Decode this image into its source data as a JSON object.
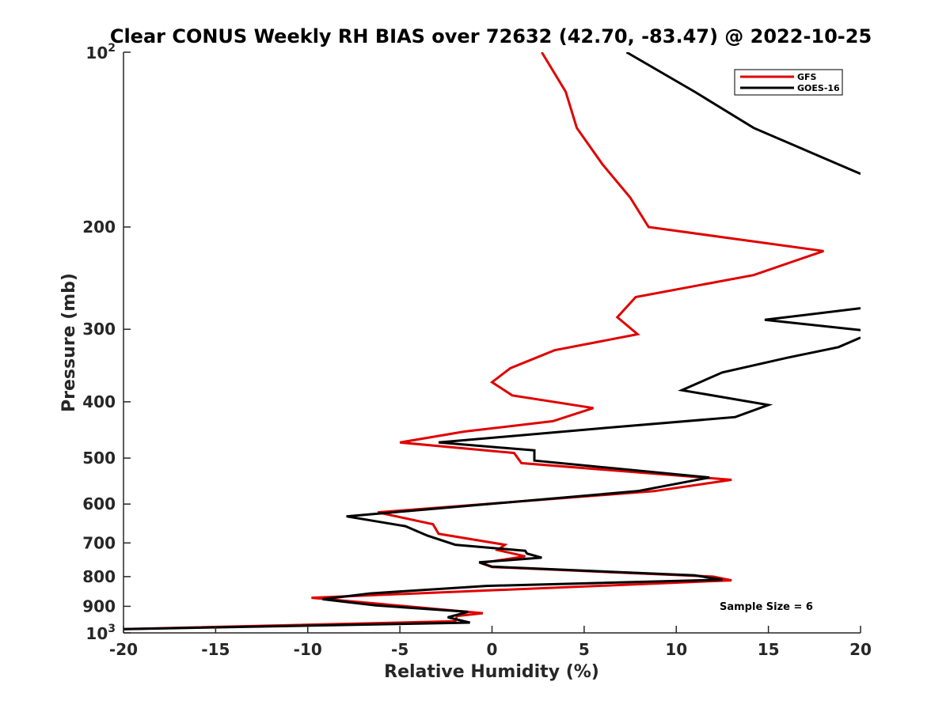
{
  "chart_data": {
    "type": "line",
    "title": "Clear CONUS Weekly RH BIAS over 72632 (42.70, -83.47) @ 2022-10-25",
    "xlabel": "Relative Humidity (%)",
    "ylabel": "Pressure (mb)",
    "xlim": [
      -20,
      20
    ],
    "ylim": [
      100,
      1000
    ],
    "y_scale": "log",
    "y_reversed": true,
    "x_ticks": [
      "-20",
      "-15",
      "-10",
      "-5",
      "0",
      "5",
      "10",
      "15",
      "20"
    ],
    "y_ticks": [
      {
        "value": 100,
        "base": "10",
        "exp": "2"
      },
      {
        "value": 200,
        "label": "200"
      },
      {
        "value": 300,
        "label": "300"
      },
      {
        "value": 400,
        "label": "400"
      },
      {
        "value": 500,
        "label": "500"
      },
      {
        "value": 600,
        "label": "600"
      },
      {
        "value": 700,
        "label": "700"
      },
      {
        "value": 800,
        "label": "800"
      },
      {
        "value": 900,
        "label": "900"
      },
      {
        "value": 1000,
        "base": "10",
        "exp": "3"
      }
    ],
    "legend_position": "top-right",
    "grid": false,
    "annotation": "Sample Size = 6",
    "series": [
      {
        "name": "GFS",
        "color": "#e00000",
        "points": [
          [
            2.7,
            100
          ],
          [
            4.0,
            117
          ],
          [
            4.6,
            135
          ],
          [
            6.0,
            156
          ],
          [
            7.5,
            178
          ],
          [
            8.5,
            200
          ],
          [
            18.0,
            220
          ],
          [
            14.2,
            242
          ],
          [
            7.8,
            264
          ],
          [
            6.8,
            286
          ],
          [
            7.9,
            306
          ],
          [
            3.4,
            326
          ],
          [
            1.0,
            350
          ],
          [
            0.0,
            370
          ],
          [
            1.1,
            390
          ],
          [
            5.5,
            410
          ],
          [
            3.3,
            432
          ],
          [
            -1.5,
            450
          ],
          [
            -5.0,
            470
          ],
          [
            1.2,
            490
          ],
          [
            1.6,
            510
          ],
          [
            13.0,
            545
          ],
          [
            8.8,
            570
          ],
          [
            -6.2,
            620
          ],
          [
            -3.2,
            650
          ],
          [
            -2.9,
            675
          ],
          [
            0.7,
            705
          ],
          [
            0.3,
            720
          ],
          [
            1.8,
            738
          ],
          [
            -0.6,
            758
          ],
          [
            0.0,
            770
          ],
          [
            12.0,
            800
          ],
          [
            13.0,
            812
          ],
          [
            -9.8,
            870
          ],
          [
            -6.3,
            890
          ],
          [
            -0.5,
            925
          ],
          [
            -1.9,
            935
          ],
          [
            -2.0,
            955
          ],
          [
            -20.0,
            985
          ]
        ]
      },
      {
        "name": "GOES-16",
        "color": "#000000",
        "points": [
          [
            7.3,
            100
          ],
          [
            11.0,
            117
          ],
          [
            14.2,
            135
          ],
          [
            20.0,
            162
          ],
          [
            null,
            null
          ],
          [
            20.0,
            276
          ],
          [
            14.8,
            289
          ],
          [
            20.0,
            301
          ],
          [
            null,
            null
          ],
          [
            20.0,
            310
          ],
          [
            18.8,
            322
          ],
          [
            16.0,
            336
          ],
          [
            12.5,
            356
          ],
          [
            10.3,
            382
          ],
          [
            15.0,
            405
          ],
          [
            13.2,
            425
          ],
          [
            6.0,
            444
          ],
          [
            -2.9,
            470
          ],
          [
            2.3,
            485
          ],
          [
            2.3,
            505
          ],
          [
            11.8,
            540
          ],
          [
            7.9,
            570
          ],
          [
            -7.9,
            630
          ],
          [
            -4.7,
            655
          ],
          [
            -3.5,
            680
          ],
          [
            -2.0,
            705
          ],
          [
            1.8,
            722
          ],
          [
            1.9,
            730
          ],
          [
            2.7,
            742
          ],
          [
            -0.7,
            756
          ],
          [
            0.0,
            769
          ],
          [
            11.0,
            796
          ],
          [
            12.5,
            810
          ],
          [
            -0.3,
            830
          ],
          [
            -6.6,
            855
          ],
          [
            -9.2,
            875
          ],
          [
            -6.3,
            897
          ],
          [
            -1.3,
            920
          ],
          [
            -2.4,
            940
          ],
          [
            -1.2,
            960
          ],
          [
            -20.0,
            985
          ]
        ]
      }
    ]
  }
}
